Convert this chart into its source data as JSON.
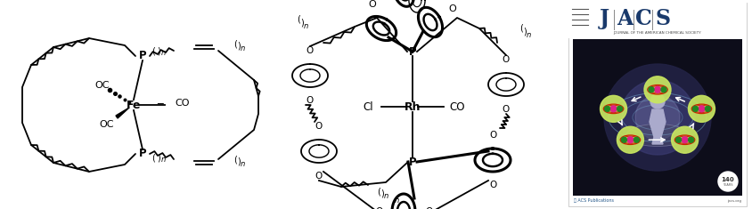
{
  "figure_width": 8.44,
  "figure_height": 2.35,
  "dpi": 100,
  "background_color": "#ffffff",
  "fe_color": "#000000",
  "rh_color": "#000000",
  "line_color": "#000000",
  "jacs_letters": [
    "J",
    "A",
    "C",
    "S"
  ],
  "jacs_letter_color": "#1a3a6b",
  "jacs_subtitle": "JOURNAL OF THE AMERICAN CHEMICAL SOCIETY",
  "arrow_color": "#ffffff",
  "orb_color": "#c8e660",
  "node_pink": "#dd2288",
  "node_green": "#228822",
  "jacs_dark_bg": "#0d0d1a",
  "jacs_glow1": "#2a2a5a",
  "jacs_glow2": "#6666aa",
  "lw_main": 1.3,
  "lw_thick": 2.2
}
